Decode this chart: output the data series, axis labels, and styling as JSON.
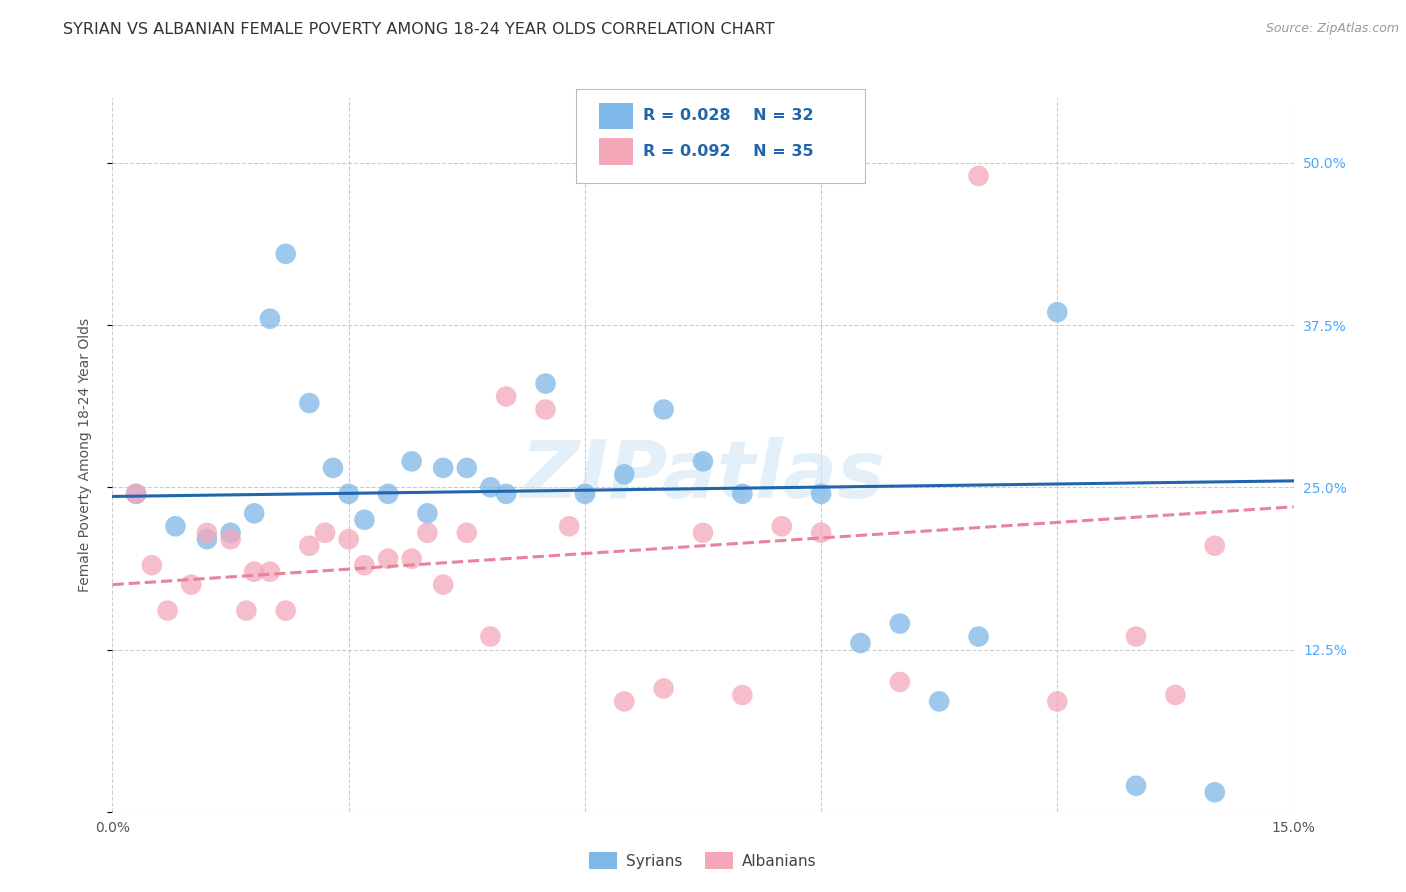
{
  "title": "SYRIAN VS ALBANIAN FEMALE POVERTY AMONG 18-24 YEAR OLDS CORRELATION CHART",
  "source": "Source: ZipAtlas.com",
  "ylabel": "Female Poverty Among 18-24 Year Olds",
  "xlim": [
    0.0,
    0.15
  ],
  "ylim": [
    0.0,
    0.55
  ],
  "xticks": [
    0.0,
    0.03,
    0.06,
    0.09,
    0.12,
    0.15
  ],
  "xticklabels": [
    "0.0%",
    "",
    "",
    "",
    "",
    "15.0%"
  ],
  "yticks_right": [
    0.0,
    0.125,
    0.25,
    0.375,
    0.5
  ],
  "ytick_labels_right": [
    "",
    "12.5%",
    "25.0%",
    "37.5%",
    "50.0%"
  ],
  "syrian_color": "#7eb8e8",
  "albanian_color": "#f4a7b9",
  "syrian_line_color": "#2166ac",
  "albanian_line_color": "#e8849a",
  "legend_r_syrian": "R = 0.028",
  "legend_n_syrian": "N = 32",
  "legend_r_albanian": "R = 0.092",
  "legend_n_albanian": "N = 35",
  "legend_text_color": "#2166ac",
  "watermark": "ZIPatlas",
  "syrian_x": [
    0.003,
    0.008,
    0.012,
    0.015,
    0.018,
    0.02,
    0.022,
    0.025,
    0.028,
    0.03,
    0.032,
    0.035,
    0.038,
    0.04,
    0.042,
    0.045,
    0.048,
    0.05,
    0.055,
    0.06,
    0.065,
    0.07,
    0.075,
    0.08,
    0.09,
    0.095,
    0.1,
    0.105,
    0.11,
    0.12,
    0.13,
    0.14
  ],
  "syrian_y": [
    0.245,
    0.22,
    0.21,
    0.215,
    0.23,
    0.38,
    0.43,
    0.315,
    0.265,
    0.245,
    0.225,
    0.245,
    0.27,
    0.23,
    0.265,
    0.265,
    0.25,
    0.245,
    0.33,
    0.245,
    0.26,
    0.31,
    0.27,
    0.245,
    0.245,
    0.13,
    0.145,
    0.085,
    0.135,
    0.385,
    0.02,
    0.015
  ],
  "albanian_x": [
    0.003,
    0.005,
    0.007,
    0.01,
    0.012,
    0.015,
    0.017,
    0.018,
    0.02,
    0.022,
    0.025,
    0.027,
    0.03,
    0.032,
    0.035,
    0.038,
    0.04,
    0.042,
    0.045,
    0.048,
    0.05,
    0.055,
    0.058,
    0.065,
    0.07,
    0.075,
    0.08,
    0.085,
    0.09,
    0.1,
    0.11,
    0.12,
    0.13,
    0.135,
    0.14
  ],
  "albanian_y": [
    0.245,
    0.19,
    0.155,
    0.175,
    0.215,
    0.21,
    0.155,
    0.185,
    0.185,
    0.155,
    0.205,
    0.215,
    0.21,
    0.19,
    0.195,
    0.195,
    0.215,
    0.175,
    0.215,
    0.135,
    0.32,
    0.31,
    0.22,
    0.085,
    0.095,
    0.215,
    0.09,
    0.22,
    0.215,
    0.1,
    0.49,
    0.085,
    0.135,
    0.09,
    0.205
  ],
  "background_color": "#ffffff",
  "grid_color": "#cccccc",
  "title_fontsize": 11.5,
  "axis_label_fontsize": 10,
  "tick_fontsize": 10,
  "right_tick_color": "#4da6ff"
}
